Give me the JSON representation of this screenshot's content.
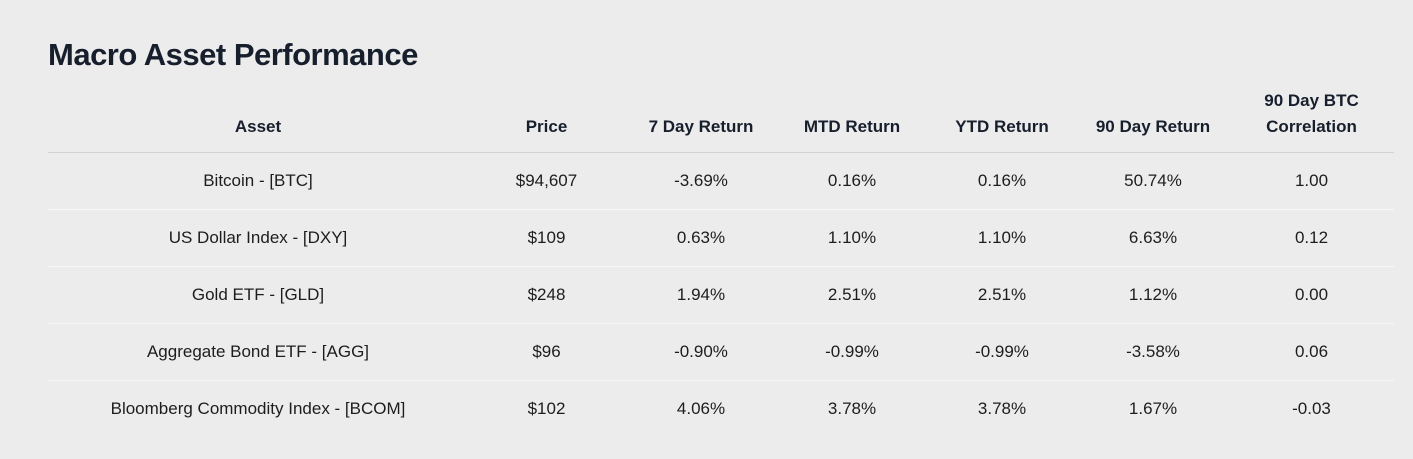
{
  "title": "Macro Asset Performance",
  "colors": {
    "background": "#ececec",
    "heading": "#171f2d",
    "positive": "#1a7d1a",
    "negative": "#e01b1b"
  },
  "chart_data": {
    "type": "table",
    "title": "Macro Asset Performance",
    "columns": [
      {
        "key": "asset",
        "label": "Asset"
      },
      {
        "key": "price",
        "label": "Price"
      },
      {
        "key": "return_7d",
        "label": "7 Day Return"
      },
      {
        "key": "return_mtd",
        "label": "MTD Return"
      },
      {
        "key": "return_ytd",
        "label": "YTD Return"
      },
      {
        "key": "return_90d",
        "label": "90 Day Return"
      },
      {
        "key": "btc_correlation_90d",
        "label": "90 Day BTC Correlation"
      }
    ],
    "rows": [
      {
        "cells": [
          {
            "text": "Bitcoin - [BTC]",
            "tone": "neutral"
          },
          {
            "text": "$94,607",
            "tone": "neutral"
          },
          {
            "text": "-3.69%",
            "tone": "neg"
          },
          {
            "text": "0.16%",
            "tone": "pos"
          },
          {
            "text": "0.16%",
            "tone": "pos"
          },
          {
            "text": "50.74%",
            "tone": "pos"
          },
          {
            "text": "1.00",
            "tone": "pos"
          }
        ]
      },
      {
        "cells": [
          {
            "text": "US Dollar Index - [DXY]",
            "tone": "neutral"
          },
          {
            "text": "$109",
            "tone": "neutral"
          },
          {
            "text": "0.63%",
            "tone": "pos"
          },
          {
            "text": "1.10%",
            "tone": "pos"
          },
          {
            "text": "1.10%",
            "tone": "pos"
          },
          {
            "text": "6.63%",
            "tone": "pos"
          },
          {
            "text": "0.12",
            "tone": "pos"
          }
        ]
      },
      {
        "cells": [
          {
            "text": "Gold ETF - [GLD]",
            "tone": "neutral"
          },
          {
            "text": "$248",
            "tone": "neutral"
          },
          {
            "text": "1.94%",
            "tone": "pos"
          },
          {
            "text": "2.51%",
            "tone": "pos"
          },
          {
            "text": "2.51%",
            "tone": "pos"
          },
          {
            "text": "1.12%",
            "tone": "pos"
          },
          {
            "text": "0.00",
            "tone": "pos"
          }
        ]
      },
      {
        "cells": [
          {
            "text": "Aggregate Bond ETF - [AGG]",
            "tone": "neutral"
          },
          {
            "text": "$96",
            "tone": "neutral"
          },
          {
            "text": "-0.90%",
            "tone": "neg"
          },
          {
            "text": "-0.99%",
            "tone": "neg"
          },
          {
            "text": "-0.99%",
            "tone": "neg"
          },
          {
            "text": "-3.58%",
            "tone": "neg"
          },
          {
            "text": "0.06",
            "tone": "pos"
          }
        ]
      },
      {
        "cells": [
          {
            "text": "Bloomberg Commodity Index - [BCOM]",
            "tone": "neutral"
          },
          {
            "text": "$102",
            "tone": "neutral"
          },
          {
            "text": "4.06%",
            "tone": "pos"
          },
          {
            "text": "3.78%",
            "tone": "pos"
          },
          {
            "text": "3.78%",
            "tone": "pos"
          },
          {
            "text": "1.67%",
            "tone": "pos"
          },
          {
            "text": "-0.03",
            "tone": "neg"
          }
        ]
      }
    ]
  }
}
